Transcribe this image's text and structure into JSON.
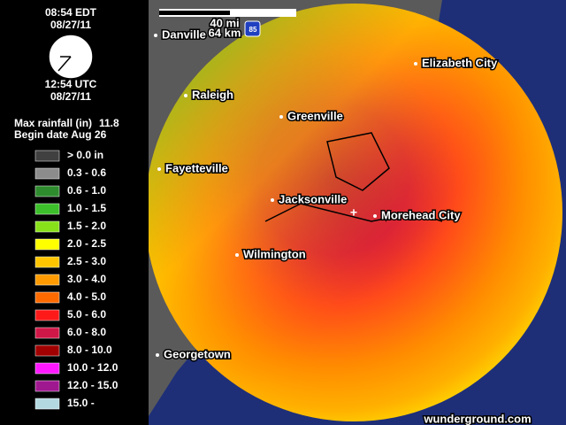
{
  "time": {
    "local": "08:54 EDT",
    "local_date": "08/27/11",
    "utc": "12:54 UTC",
    "utc_date": "08/27/11"
  },
  "max_rainfall": {
    "label": "Max rainfall (in)",
    "value": 11.8
  },
  "begin_date": "Begin date Aug 26",
  "legend": [
    {
      "label": "> 0.0 in",
      "color": "#404040"
    },
    {
      "label": "0.3 - 0.6",
      "color": "#8c8c8c"
    },
    {
      "label": "0.6 - 1.0",
      "color": "#2e8b2e"
    },
    {
      "label": "1.0 - 1.5",
      "color": "#3cbf2a"
    },
    {
      "label": "1.5 - 2.0",
      "color": "#88e01a"
    },
    {
      "label": "2.0 - 2.5",
      "color": "#ffff00"
    },
    {
      "label": "2.5 - 3.0",
      "color": "#ffc400"
    },
    {
      "label": "3.0 - 4.0",
      "color": "#ff9a00"
    },
    {
      "label": "4.0 - 5.0",
      "color": "#ff6a00"
    },
    {
      "label": "5.0 - 6.0",
      "color": "#ff1a1a"
    },
    {
      "label": "6.0 - 8.0",
      "color": "#d01848"
    },
    {
      "label": "8.0 - 10.0",
      "color": "#a00000"
    },
    {
      "label": "10.0 - 12.0",
      "color": "#ff18ff"
    },
    {
      "label": "12.0 - 15.0",
      "color": "#a01890"
    },
    {
      "label": "15.0 -",
      "color": "#b4d8e0"
    }
  ],
  "scale": {
    "miles": "40 mi",
    "km": "64 km",
    "shield": "85"
  },
  "cities": [
    "Danville",
    "Raleigh",
    "Greenville",
    "Elizabeth City",
    "Fayetteville",
    "Jacksonville",
    "Morehead City",
    "Wilmington",
    "Georgetown"
  ],
  "footer": "wunderground.com"
}
